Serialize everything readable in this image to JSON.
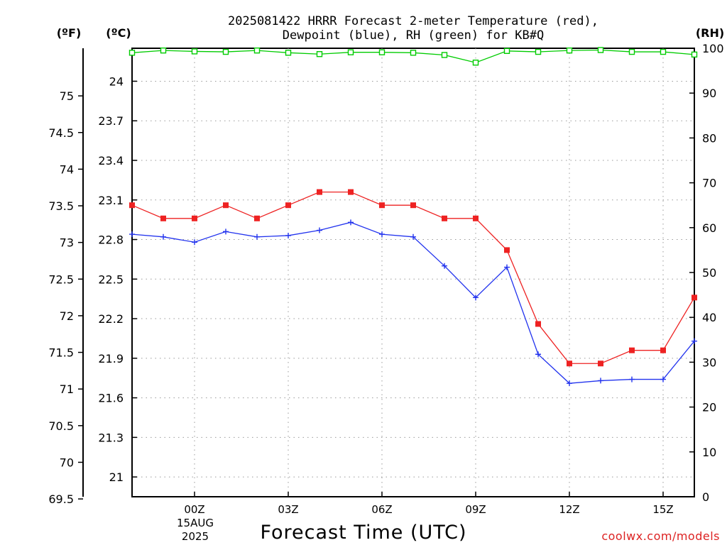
{
  "header": {
    "title_line1": "2025081422 HRRR Forecast 2-meter Temperature (red),",
    "title_line2": "Dewpoint (blue), RH (green) for KB#Q"
  },
  "axis_units": {
    "f": "(ºF)",
    "c": "(ºC)",
    "rh": "(RH)"
  },
  "xaxis": {
    "label": "Forecast Time (UTC)",
    "date_lines": [
      "15AUG",
      "2025"
    ]
  },
  "footer": {
    "credit": "coolwx.com/models"
  },
  "colors": {
    "temperature": "#ee2222",
    "dewpoint": "#2233ee",
    "rh": "#00cc00",
    "grid": "#999999",
    "credit": "#dd2222"
  },
  "chart_data": {
    "type": "line",
    "title": "2025081422 HRRR Forecast 2-meter Temperature (red), Dewpoint (blue), RH (green) for KB#Q",
    "xlabel": "Forecast Time (UTC)",
    "x": [
      "22Z",
      "23Z",
      "00Z",
      "01Z",
      "02Z",
      "03Z",
      "04Z",
      "05Z",
      "06Z",
      "07Z",
      "08Z",
      "09Z",
      "10Z",
      "11Z",
      "12Z",
      "13Z",
      "14Z",
      "15Z",
      "16Z"
    ],
    "x_tick_labels": [
      "00Z",
      "03Z",
      "06Z",
      "09Z",
      "12Z",
      "15Z"
    ],
    "x_tick_index": [
      2,
      5,
      8,
      11,
      14,
      17
    ],
    "grid": true,
    "left_axis_f": {
      "label": "(ºF)",
      "ticks": [
        "69.5",
        "70",
        "70.5",
        "71",
        "71.5",
        "72",
        "72.5",
        "73",
        "73.5",
        "74",
        "74.5",
        "75"
      ]
    },
    "left_axis_c": {
      "label": "(ºC)",
      "ticks": [
        "21",
        "21.3",
        "21.6",
        "21.9",
        "22.2",
        "22.5",
        "22.8",
        "23.1",
        "23.4",
        "23.7",
        "24"
      ],
      "ylim": [
        20.85,
        24.25
      ]
    },
    "right_axis_rh": {
      "label": "(RH)",
      "ticks": [
        "0",
        "10",
        "20",
        "30",
        "40",
        "50",
        "60",
        "70",
        "80",
        "90",
        "100"
      ],
      "ylim": [
        0,
        100
      ]
    },
    "series": [
      {
        "name": "Temperature",
        "unit": "C",
        "axis": "c",
        "marker": "filled-square",
        "values": [
          23.06,
          22.96,
          22.96,
          23.06,
          22.96,
          23.06,
          23.16,
          23.16,
          23.06,
          23.06,
          22.96,
          22.96,
          22.72,
          22.16,
          21.86,
          21.86,
          21.96,
          21.96,
          22.36
        ]
      },
      {
        "name": "Dewpoint",
        "unit": "C",
        "axis": "c",
        "marker": "plus",
        "values": [
          22.84,
          22.82,
          22.78,
          22.86,
          22.82,
          22.83,
          22.87,
          22.93,
          22.84,
          22.82,
          22.6,
          22.36,
          22.59,
          21.93,
          21.71,
          21.73,
          21.74,
          21.74,
          22.03
        ]
      },
      {
        "name": "RH",
        "unit": "%",
        "axis": "rh",
        "marker": "open-square",
        "values": [
          99,
          99.5,
          99.3,
          99.2,
          99.5,
          99,
          98.7,
          99.1,
          99.1,
          99,
          98.5,
          96.8,
          99.4,
          99.2,
          99.5,
          99.6,
          99.2,
          99.2,
          98.6
        ]
      }
    ]
  }
}
